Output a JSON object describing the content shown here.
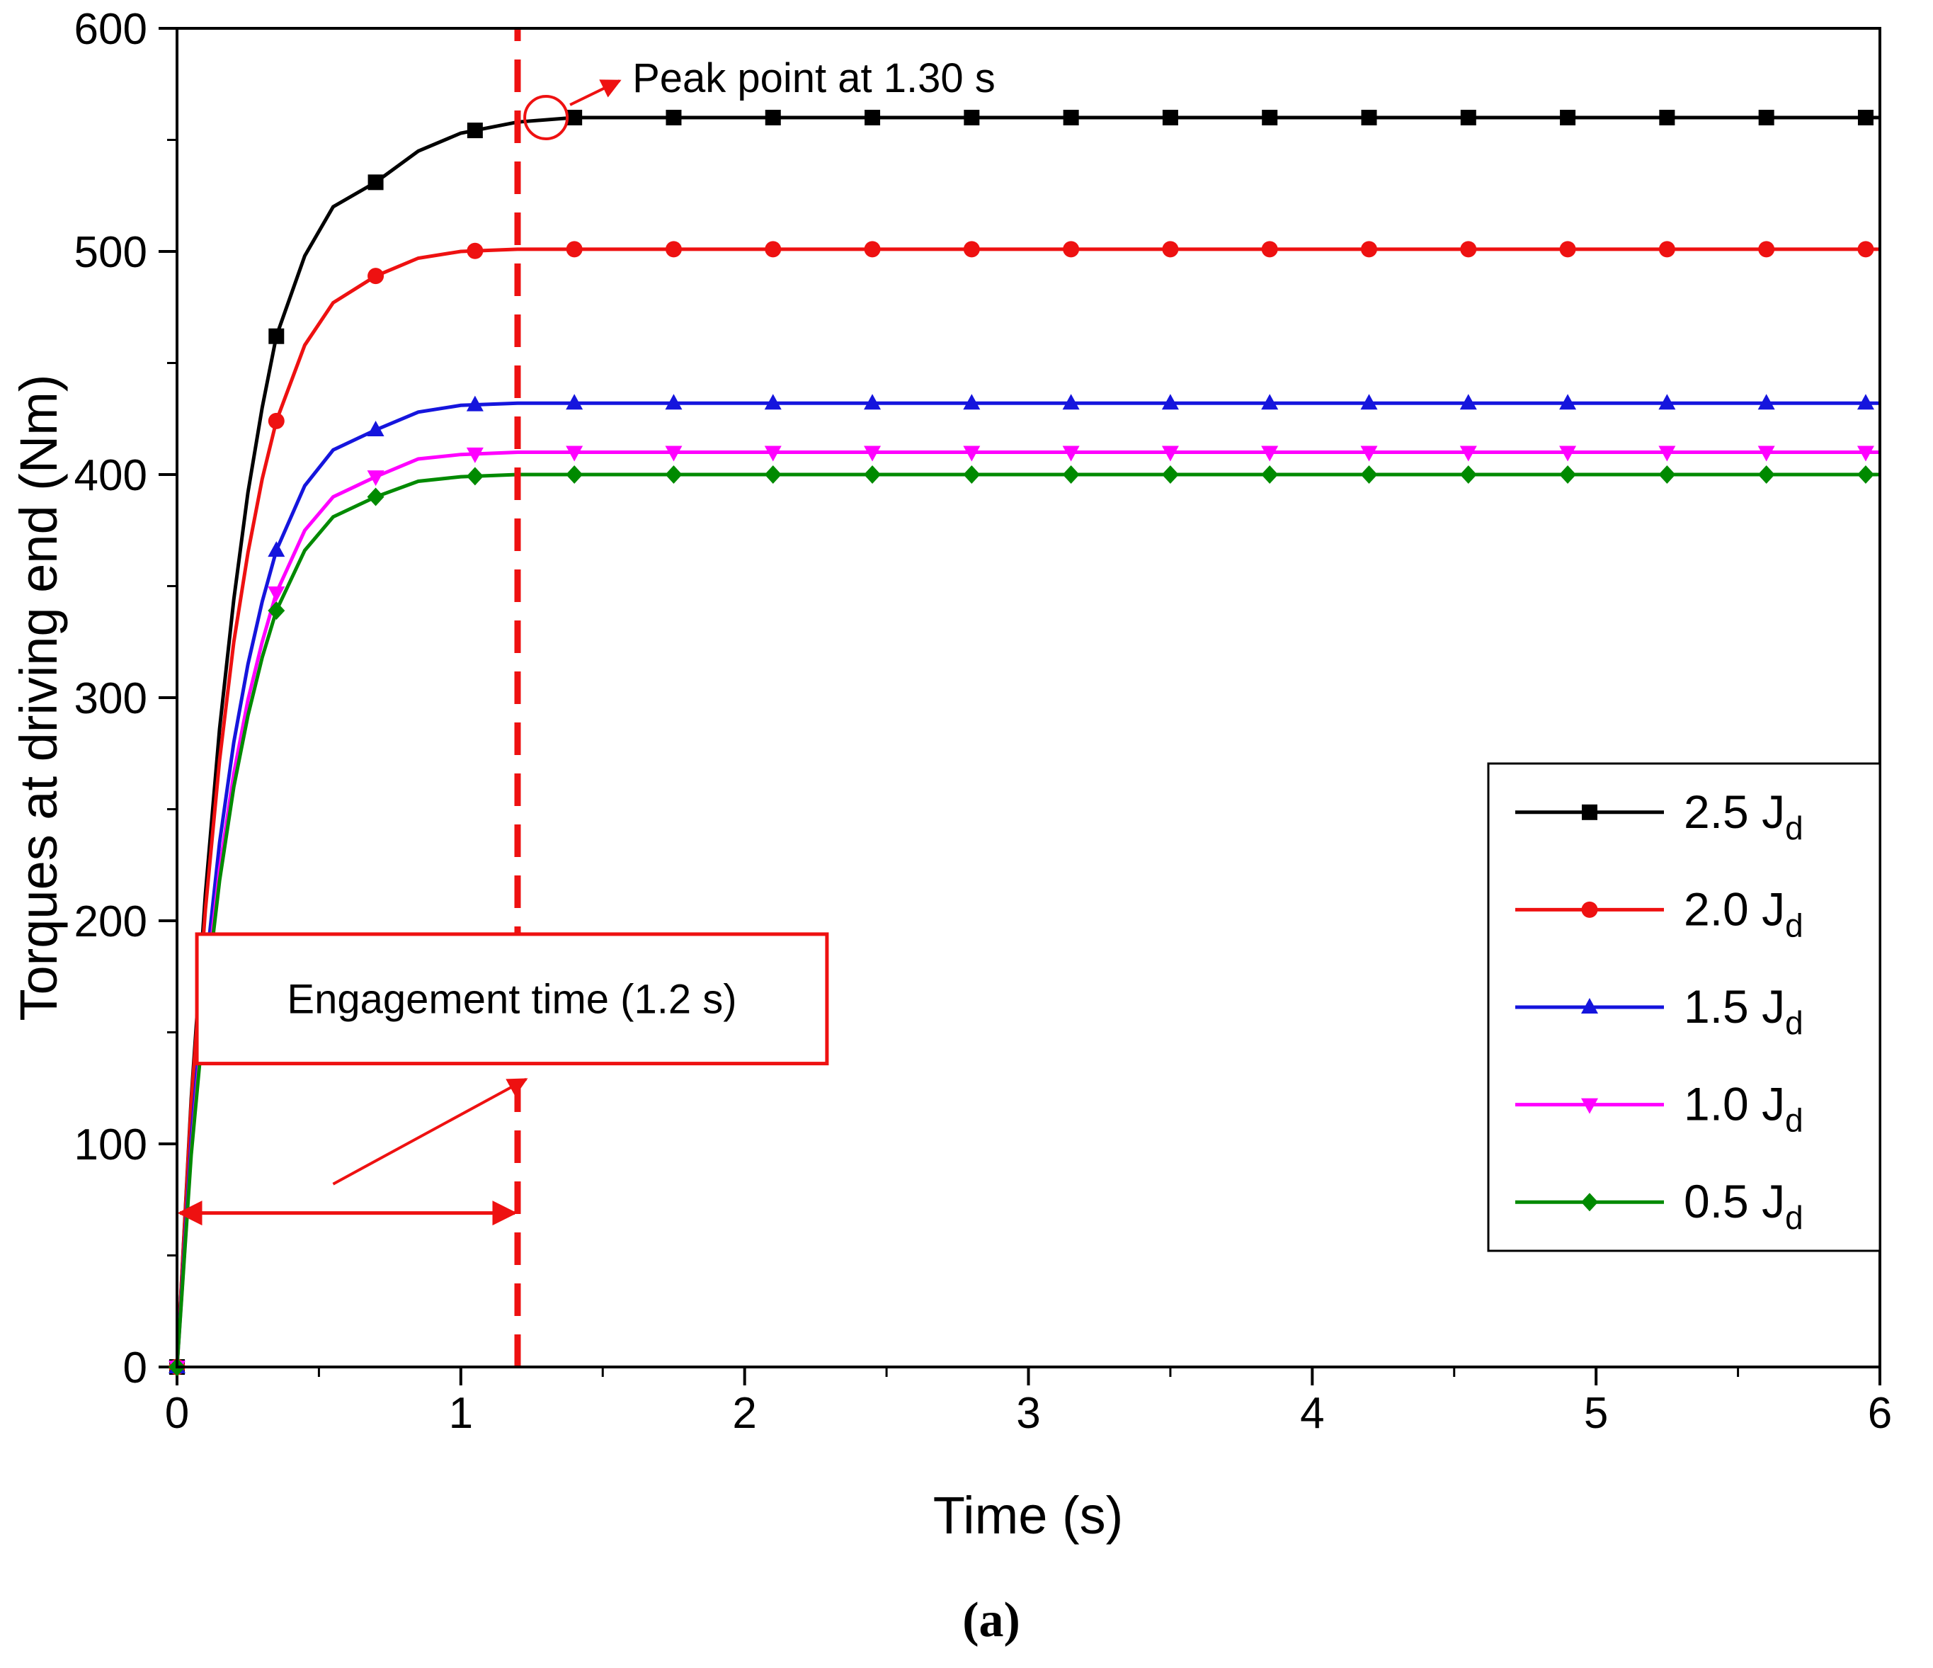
{
  "figure": {
    "caption": "(a)"
  },
  "chart_data": {
    "type": "line",
    "title": "",
    "xlabel": "Time (s)",
    "ylabel": "Torques at driving end (Nm)",
    "xlim": [
      0,
      6
    ],
    "ylim": [
      0,
      600
    ],
    "xticks": [
      0,
      1,
      2,
      3,
      4,
      5,
      6
    ],
    "yticks": [
      0,
      100,
      200,
      300,
      400,
      500,
      600
    ],
    "x_minor_step": 0.5,
    "y_minor_step": 50,
    "x_rise": [
      0,
      0.05,
      0.1,
      0.15,
      0.2,
      0.25,
      0.3,
      0.35,
      0.45,
      0.55,
      0.7,
      0.85,
      1.0,
      1.2,
      1.4
    ],
    "marker_x": [
      0,
      0.35,
      0.7,
      1.05,
      1.4,
      1.75,
      2.1,
      2.45,
      2.8,
      3.15,
      3.5,
      3.85,
      4.2,
      4.55,
      4.9,
      5.25,
      5.6,
      5.95
    ],
    "series": [
      {
        "name": "2.5 Jd",
        "label": "2.5 J",
        "label_sub": "d",
        "color": "#000000",
        "marker": "square",
        "steady": 560,
        "rise_y": [
          0,
          120,
          212,
          286,
          344,
          392,
          430,
          462,
          498,
          520,
          531,
          545,
          553,
          558,
          560
        ]
      },
      {
        "name": "2.0 Jd",
        "label": "2.0 J",
        "label_sub": "d",
        "color": "#ee1111",
        "marker": "circle",
        "steady": 501,
        "rise_y": [
          0,
          118,
          205,
          272,
          325,
          365,
          398,
          424,
          458,
          477,
          489,
          497,
          500,
          501,
          501
        ]
      },
      {
        "name": "1.5 Jd",
        "label": "1.5 J",
        "label_sub": "d",
        "color": "#1515dd",
        "marker": "triangle-up",
        "steady": 432,
        "rise_y": [
          0,
          102,
          177,
          235,
          280,
          315,
          343,
          366,
          395,
          411,
          420,
          428,
          431,
          432,
          432
        ]
      },
      {
        "name": "1.0 Jd",
        "label": "1.0 J",
        "label_sub": "d",
        "color": "#ff00ff",
        "marker": "triangle-down",
        "steady": 410,
        "rise_y": [
          0,
          97,
          168,
          223,
          266,
          299,
          325,
          347,
          375,
          390,
          399,
          407,
          409,
          410,
          410
        ]
      },
      {
        "name": "0.5 Jd",
        "label": "0.5 J",
        "label_sub": "d",
        "color": "#008a00",
        "marker": "diamond",
        "steady": 400,
        "rise_y": [
          0,
          95,
          164,
          218,
          260,
          292,
          318,
          339,
          366,
          381,
          390,
          397,
          399,
          400,
          400
        ]
      }
    ],
    "legend": {
      "position": "right-middle"
    },
    "annotations": {
      "peak_label": "Peak point at 1.30 s",
      "peak_time": 1.3,
      "peak_value": 560,
      "engagement_label": "Engagement time (1.2 s)",
      "engagement_time": 1.2,
      "accent_color": "#ee1111"
    }
  }
}
